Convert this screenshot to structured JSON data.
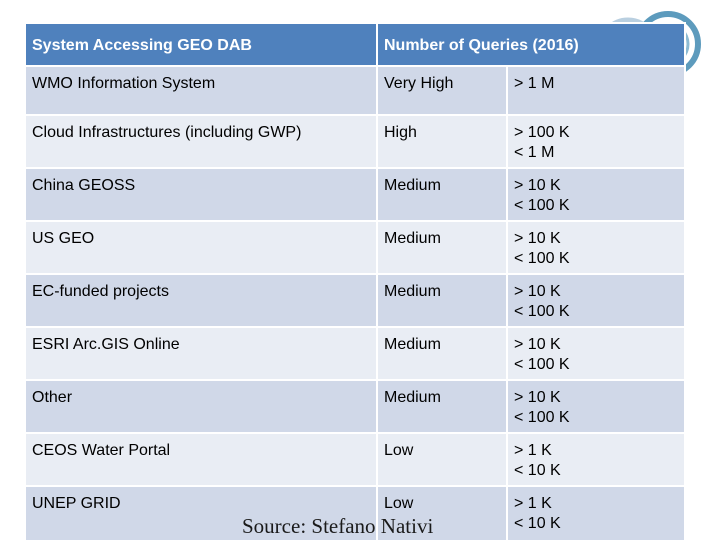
{
  "table": {
    "headers": {
      "system": "System Accessing GEO DAB",
      "queries": "Number of Queries (2016)"
    },
    "rows": [
      {
        "system": "WMO Information System",
        "level": "Very High",
        "range_line1": "> 1 M",
        "range_line2": ""
      },
      {
        "system": "Cloud Infrastructures (including GWP)",
        "level": "High",
        "range_line1": "> 100 K",
        "range_line2": "< 1 M"
      },
      {
        "system": "China GEOSS",
        "level": "Medium",
        "range_line1": "> 10 K",
        "range_line2": "< 100 K"
      },
      {
        "system": "US GEO",
        "level": "Medium",
        "range_line1": "> 10 K",
        "range_line2": "< 100 K"
      },
      {
        "system": "EC-funded projects",
        "level": "Medium",
        "range_line1": "> 10 K",
        "range_line2": "< 100 K"
      },
      {
        "system": "ESRI Arc.GIS Online",
        "level": "Medium",
        "range_line1": "> 10 K",
        "range_line2": "< 100 K"
      },
      {
        "system": "Other",
        "level": "Medium",
        "range_line1": "> 10 K",
        "range_line2": "< 100 K"
      },
      {
        "system": "CEOS Water Portal",
        "level": "Low",
        "range_line1": "> 1 K",
        "range_line2": "< 10 K"
      },
      {
        "system": "UNEP GRID",
        "level": "Low",
        "range_line1": "> 1 K",
        "range_line2": "< 10 K"
      }
    ]
  },
  "source": "Source: Stefano Nativi",
  "colors": {
    "header_bg": "#4f81bd",
    "row_odd_bg": "#d0d8e8",
    "row_even_bg": "#e9edf4"
  },
  "logo": {
    "icon": "geo-globe-logo-icon"
  }
}
